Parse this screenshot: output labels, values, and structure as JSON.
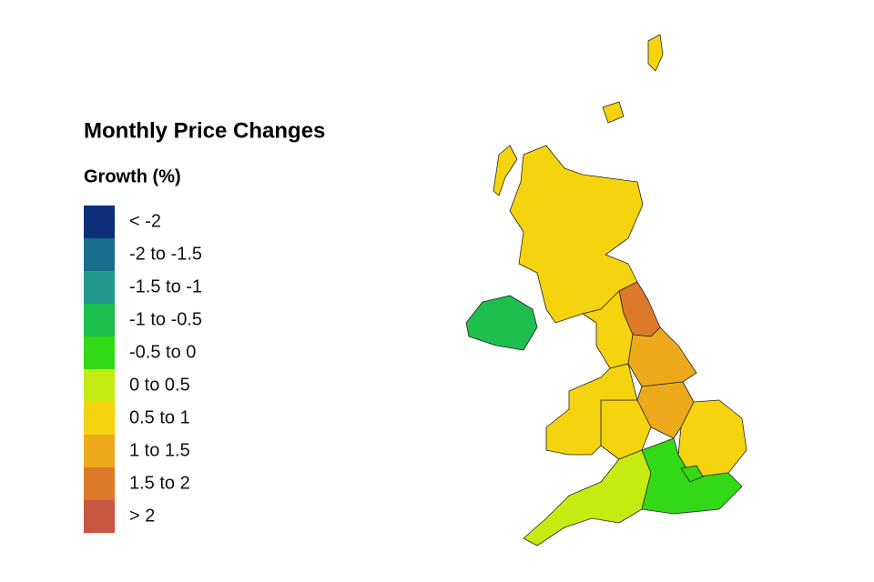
{
  "header": {
    "title": "Monthly Price Changes",
    "subtitle": "Growth (%)"
  },
  "legend": {
    "items": [
      {
        "label": "< -2",
        "color": "#0d2f7a"
      },
      {
        "label": "-2 to -1.5",
        "color": "#1a6e8c"
      },
      {
        "label": "-1.5 to -1",
        "color": "#21998a"
      },
      {
        "label": "-1 to -0.5",
        "color": "#1dbf4f"
      },
      {
        "label": "-0.5 to 0",
        "color": "#33d916"
      },
      {
        "label": "0 to 0.5",
        "color": "#c4ec12"
      },
      {
        "label": "0.5 to 1",
        "color": "#f5d30e"
      },
      {
        "label": "1 to 1.5",
        "color": "#eda91c"
      },
      {
        "label": "1.5 to 2",
        "color": "#dc7a2a"
      },
      {
        "label": "> 2",
        "color": "#c95642"
      }
    ]
  }
}
